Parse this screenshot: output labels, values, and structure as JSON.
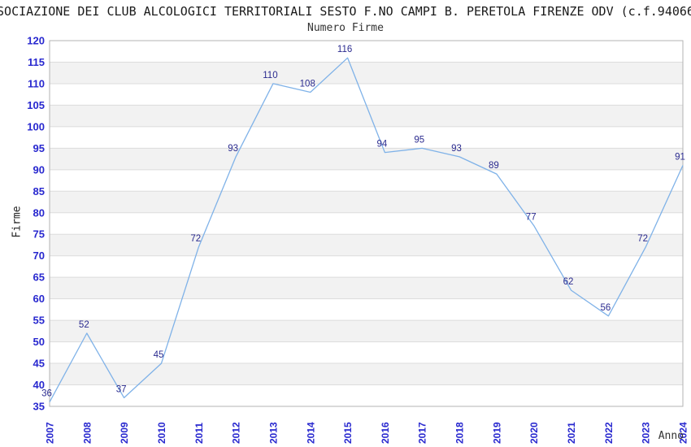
{
  "chart_data": {
    "type": "line",
    "banner_title": "SOCIAZIONE DEI CLUB ALCOLOGICI TERRITORIALI SESTO F.NO CAMPI B. PERETOLA FIRENZE ODV (c.f.94066",
    "title": "Numero Firme",
    "xlabel": "Anno",
    "ylabel": "Firme",
    "categories": [
      "2007",
      "2008",
      "2009",
      "2010",
      "2011",
      "2012",
      "2013",
      "2014",
      "2015",
      "2016",
      "2017",
      "2018",
      "2019",
      "2020",
      "2021",
      "2022",
      "2023",
      "2024"
    ],
    "values": [
      36,
      52,
      37,
      45,
      72,
      93,
      110,
      108,
      116,
      94,
      95,
      93,
      89,
      77,
      62,
      56,
      72,
      91
    ],
    "ylim": [
      35,
      120
    ],
    "ytick_step": 5,
    "grid": "horizontal",
    "legend": "none",
    "colors": {
      "line": "#7fb2e8",
      "data_label": "#2b2b8f",
      "tick_label": "#2828cf",
      "band_alt": "#f2f2f2",
      "band_main": "#ffffff",
      "gridline": "#dcdcdc",
      "plot_border": "#b3b3b3",
      "banner_title": "#1a1a1a",
      "axis_title": "#333333"
    }
  }
}
